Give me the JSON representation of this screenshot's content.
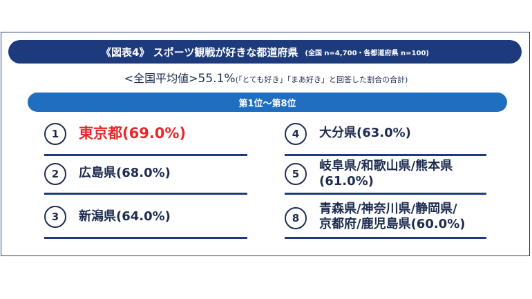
{
  "title": {
    "main": "《図表4》 スポーツ観戦が好きな都道府県",
    "note": "(全国 n=4,700・各都道府県 n=100)"
  },
  "average": {
    "label": "<全国平均値>",
    "value": "55.1%",
    "note": "(「とても好き」「まあ好き」と回答した割合の合計)"
  },
  "rank_header": "第1位〜第8位",
  "rankings": {
    "left": [
      {
        "rank": "1",
        "text": "東京都(69.0%)"
      },
      {
        "rank": "2",
        "text": "広島県(68.0%)"
      },
      {
        "rank": "3",
        "text": "新潟県(64.0%)"
      }
    ],
    "right": [
      {
        "rank": "4",
        "text": "大分県(63.0%)"
      },
      {
        "rank": "5",
        "line1": "岐阜県/和歌山県/熊本県",
        "line2": "(61.0%)"
      },
      {
        "rank": "8",
        "line1": "青森県/神奈川県/静岡県/",
        "line2": "京都府/鹿児島県(60.0%)"
      }
    ]
  },
  "colors": {
    "title_bg": "#1c3a7c",
    "rank_bar_bg": "#1f6ec0",
    "highlight": "#e8262a",
    "text": "#1c2b4f"
  }
}
